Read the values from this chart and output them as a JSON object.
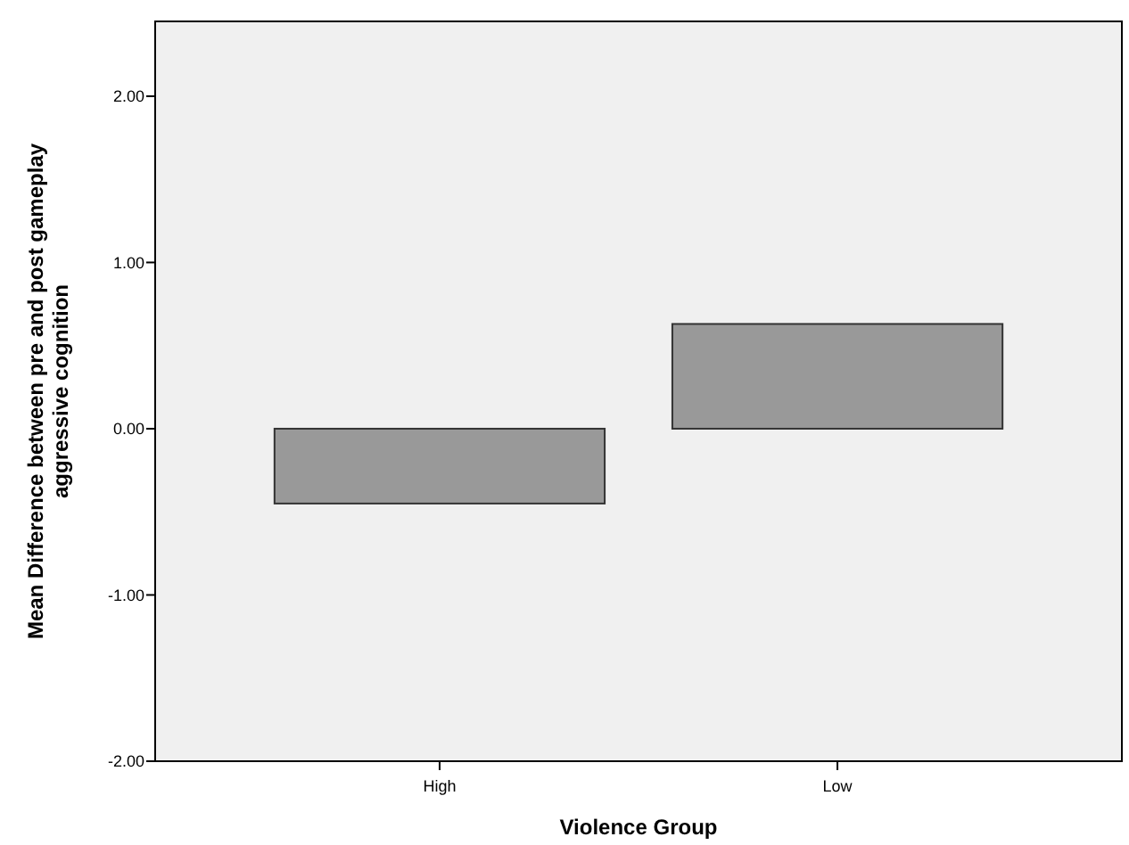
{
  "chart_data": {
    "type": "bar",
    "xlabel": "Violence Group",
    "ylabel": "Mean Difference between pre and post gameplay aggressive cognition",
    "categories": [
      "High",
      "Low"
    ],
    "values": [
      -0.45,
      0.63
    ],
    "color": "#999999",
    "ylim": [
      -2,
      2.45
    ],
    "yticks": [
      {
        "value": -2,
        "label": "-2.00"
      },
      {
        "value": -1,
        "label": "-1.00"
      },
      {
        "value": 0,
        "label": "0.00"
      },
      {
        "value": 1,
        "label": "1.00"
      },
      {
        "value": 2,
        "label": "2.00"
      }
    ],
    "grid": false
  }
}
